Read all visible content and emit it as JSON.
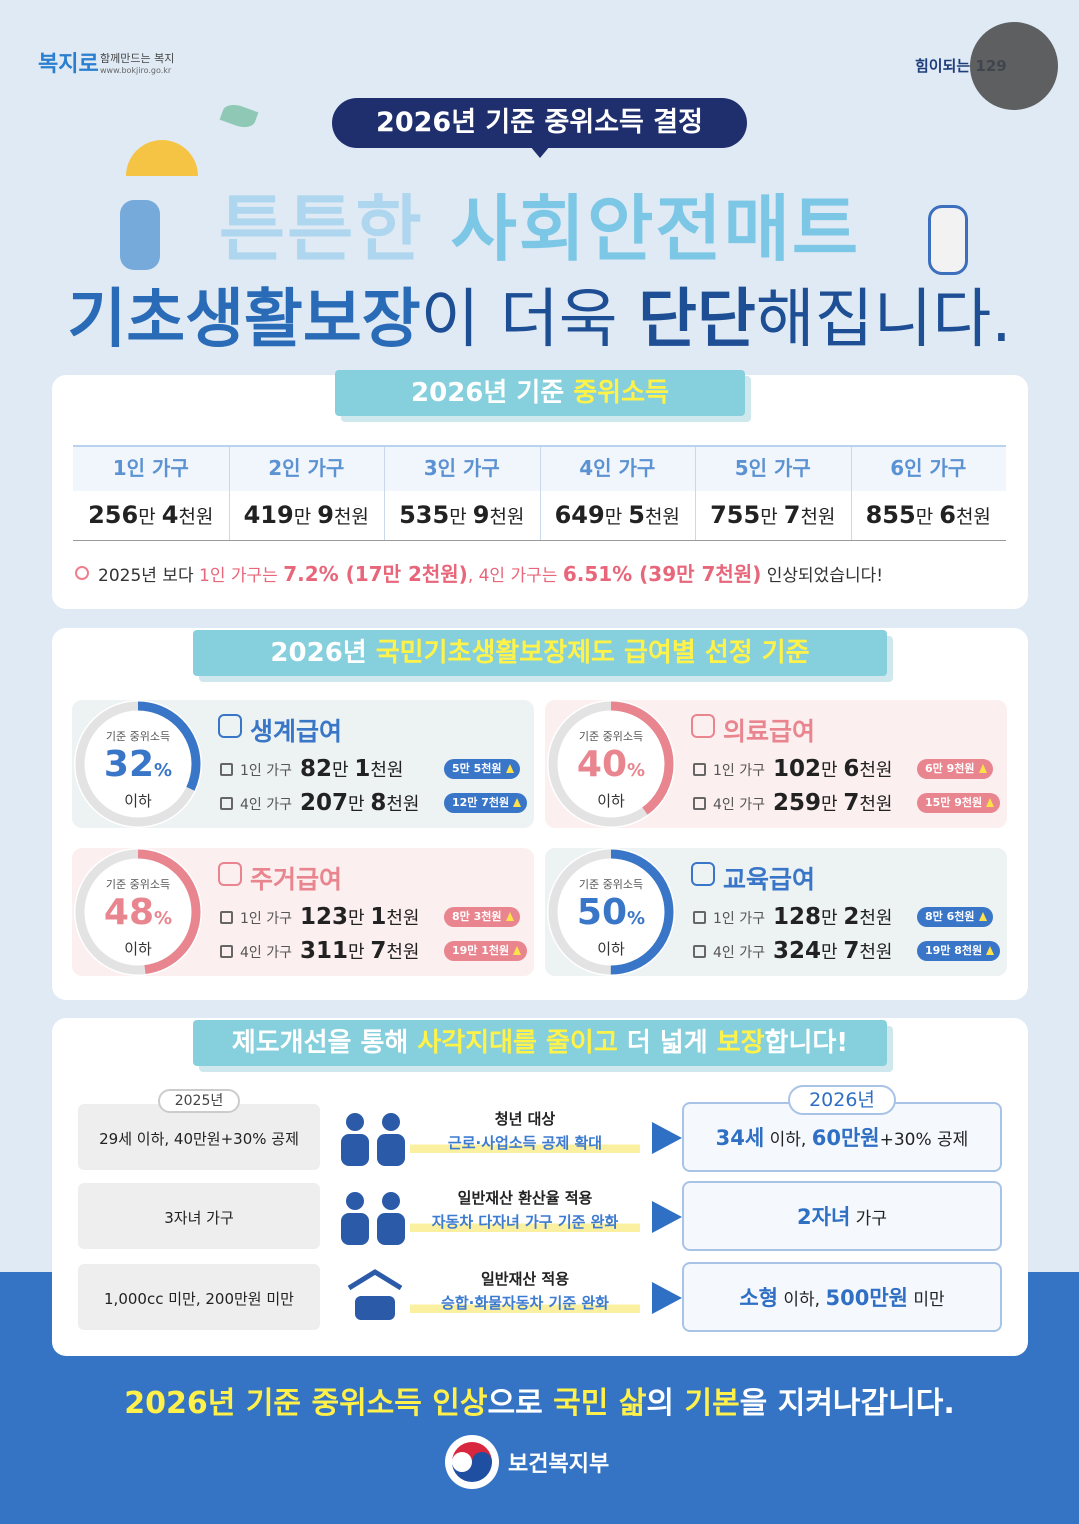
{
  "header": {
    "logo_name": "복지로",
    "logo_tagline": "함께만드는 복지",
    "logo_url": "www.bokjiro.go.kr",
    "right_logo": "힘이되는 129",
    "badge": "2026년 기준 중위소득 결정",
    "headline1": [
      "튼튼한 ",
      "사회안전매트"
    ],
    "headline2": [
      "기초생활보장",
      "이 더욱 ",
      "단단",
      "해집니다."
    ]
  },
  "median_income": {
    "title": [
      "2026년 기준 ",
      "중위소득"
    ],
    "households": [
      {
        "label": "1인 가구",
        "amount": [
          "256",
          "만 ",
          "4",
          "천원"
        ]
      },
      {
        "label": "2인 가구",
        "amount": [
          "419",
          "만 ",
          "9",
          "천원"
        ]
      },
      {
        "label": "3인 가구",
        "amount": [
          "535",
          "만 ",
          "9",
          "천원"
        ]
      },
      {
        "label": "4인 가구",
        "amount": [
          "649",
          "만 ",
          "5",
          "천원"
        ]
      },
      {
        "label": "5인 가구",
        "amount": [
          "755",
          "만 ",
          "7",
          "천원"
        ]
      },
      {
        "label": "6인 가구",
        "amount": [
          "855",
          "만 ",
          "6",
          "천원"
        ]
      }
    ],
    "note": [
      "2025년 보다 ",
      "1인 가구는 ",
      "7.2% (17만 2천원)",
      ", 4인 가구는 ",
      "6.51% (39만 7천원)",
      " 인상되었습니다!"
    ]
  },
  "benefits": {
    "title": [
      "2026년 ",
      "국민기초생활보장제도 급여별 선정 기준"
    ],
    "items": [
      {
        "name": "생계급여",
        "criterion": "기준 중위소득",
        "percent": 32,
        "unit": "%",
        "below": "이하",
        "color": "#3a76c8",
        "rows": [
          {
            "household": "1인 가구",
            "amount": [
              "82",
              "만 ",
              "1",
              "천원"
            ],
            "increase": "5만 5천원"
          },
          {
            "household": "4인 가구",
            "amount": [
              "207",
              "만 ",
              "8",
              "천원"
            ],
            "increase": "12만 7천원"
          }
        ]
      },
      {
        "name": "의료급여",
        "criterion": "기준 중위소득",
        "percent": 40,
        "unit": "%",
        "below": "이하",
        "color": "#e8858f",
        "rows": [
          {
            "household": "1인 가구",
            "amount": [
              "102",
              "만 ",
              "6",
              "천원"
            ],
            "increase": "6만 9천원"
          },
          {
            "household": "4인 가구",
            "amount": [
              "259",
              "만 ",
              "7",
              "천원"
            ],
            "increase": "15만 9천원"
          }
        ]
      },
      {
        "name": "주거급여",
        "criterion": "기준 중위소득",
        "percent": 48,
        "unit": "%",
        "below": "이하",
        "color": "#e8858f",
        "rows": [
          {
            "household": "1인 가구",
            "amount": [
              "123",
              "만 ",
              "1",
              "천원"
            ],
            "increase": "8만 3천원"
          },
          {
            "household": "4인 가구",
            "amount": [
              "311",
              "만 ",
              "7",
              "천원"
            ],
            "increase": "19만 1천원"
          }
        ]
      },
      {
        "name": "교육급여",
        "criterion": "기준 중위소득",
        "percent": 50,
        "unit": "%",
        "below": "이하",
        "color": "#3a76c8",
        "rows": [
          {
            "household": "1인 가구",
            "amount": [
              "128",
              "만 ",
              "2",
              "천원"
            ],
            "increase": "8만 6천원"
          },
          {
            "household": "4인 가구",
            "amount": [
              "324",
              "만 ",
              "7",
              "천원"
            ],
            "increase": "19만 8천원"
          }
        ]
      }
    ]
  },
  "reform": {
    "title": [
      "제도개선을 통해 ",
      "사각지대를 줄이고",
      " 더 넓게 ",
      "보장",
      "합니다!"
    ],
    "year_before": "2025년",
    "year_after": "2026년",
    "rows": [
      {
        "before": "29세 이하, 40만원+30% 공제",
        "topic": "청년 대상",
        "detail": "근로·사업소득 공제 확대",
        "after": [
          "34세",
          " 이하, ",
          "60만원",
          "+30% 공제"
        ]
      },
      {
        "before": "3자녀 가구",
        "topic": "일반재산 환산율 적용",
        "detail": "자동차 다자녀 가구 기준 완화",
        "after": [
          "2자녀",
          " 가구"
        ]
      },
      {
        "before": "1,000cc 미만, 200만원 미만",
        "topic": "일반재산 적용",
        "detail": "승합·화물자동차 기준 완화",
        "after": [
          "소형",
          " 이하, ",
          "500만원",
          " 미만"
        ]
      }
    ]
  },
  "footer": {
    "slogan": [
      "2026년 기준 중위소득 인상",
      "으로 ",
      "국민 삶",
      "의 ",
      "기본",
      "을 지켜나갑니다."
    ],
    "ministry": "보건복지부"
  }
}
